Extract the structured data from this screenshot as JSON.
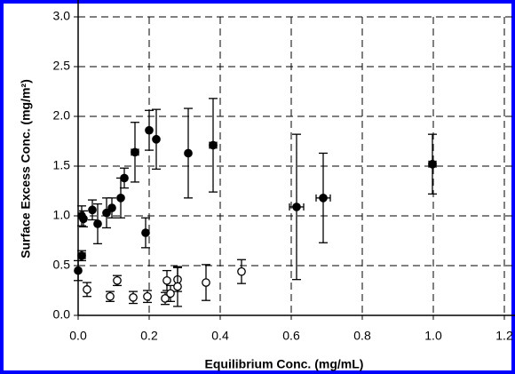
{
  "chart_data": {
    "type": "scatter",
    "x_label": "Equilibrium Conc. (mg/mL)",
    "y_label": "Surface Excess Conc. (mg/m²)",
    "xlim": [
      0,
      1.2
    ],
    "xticks": [
      {
        "value": 0,
        "label": "0.0"
      },
      {
        "value": 0.2,
        "label": "0.2"
      },
      {
        "value": 0.4,
        "label": "0.4"
      },
      {
        "value": 0.6,
        "label": "0.6"
      },
      {
        "value": 0.8,
        "label": "0.8"
      },
      {
        "value": 1,
        "label": "1.0"
      },
      {
        "value": 1.2,
        "label": "1.2"
      }
    ],
    "ylim": [
      0,
      3
    ],
    "yticks": [
      {
        "value": 0,
        "label": "0.0"
      },
      {
        "value": 0.5,
        "label": "0.5"
      },
      {
        "value": 1,
        "label": "1.0"
      },
      {
        "value": 1.5,
        "label": "1.5"
      },
      {
        "value": 2,
        "label": "2.0"
      },
      {
        "value": 2.5,
        "label": "2.5"
      },
      {
        "value": 3,
        "label": "3.0"
      }
    ],
    "grid": true,
    "series": [
      {
        "marker": "filled",
        "color": "#000000",
        "x": [
          0.0,
          0.01,
          0.01,
          0.015,
          0.04,
          0.055,
          0.08,
          0.095,
          0.12,
          0.13,
          0.16,
          0.19,
          0.2,
          0.22,
          0.31,
          0.38,
          0.615,
          0.69,
          0.9975
        ],
        "values": [
          0.45,
          0.6,
          1.0,
          0.97,
          1.06,
          0.92,
          1.03,
          1.08,
          1.18,
          1.38,
          1.64,
          0.83,
          1.86,
          1.77,
          1.63,
          1.71,
          1.09,
          1.18,
          1.52
        ],
        "yerr": [
          0.1,
          0.05,
          0.1,
          0.08,
          0.1,
          0.2,
          0.15,
          0.1,
          0.2,
          0.1,
          0.3,
          0.15,
          0.2,
          0.3,
          0.45,
          0.47,
          0.73,
          0.45,
          0.3
        ],
        "xerr": [
          null,
          0.01,
          null,
          null,
          null,
          null,
          null,
          null,
          null,
          null,
          0.01,
          null,
          null,
          null,
          null,
          0.01,
          0.02,
          0.02,
          0.01
        ]
      },
      {
        "marker": "open",
        "color": "#000000",
        "x": [
          0.025,
          0.09,
          0.11,
          0.155,
          0.195,
          0.245,
          0.25,
          0.26,
          0.28,
          0.28,
          0.36,
          0.46
        ],
        "values": [
          0.26,
          0.19,
          0.35,
          0.18,
          0.19,
          0.17,
          0.35,
          0.22,
          0.36,
          0.29,
          0.33,
          0.44
        ],
        "yerr": [
          0.07,
          0.05,
          0.05,
          0.06,
          0.06,
          0.06,
          0.1,
          0.08,
          0.12,
          0.2,
          0.18,
          0.12
        ],
        "xerr": [
          null,
          null,
          null,
          null,
          null,
          null,
          null,
          null,
          null,
          null,
          null,
          null
        ]
      }
    ]
  }
}
